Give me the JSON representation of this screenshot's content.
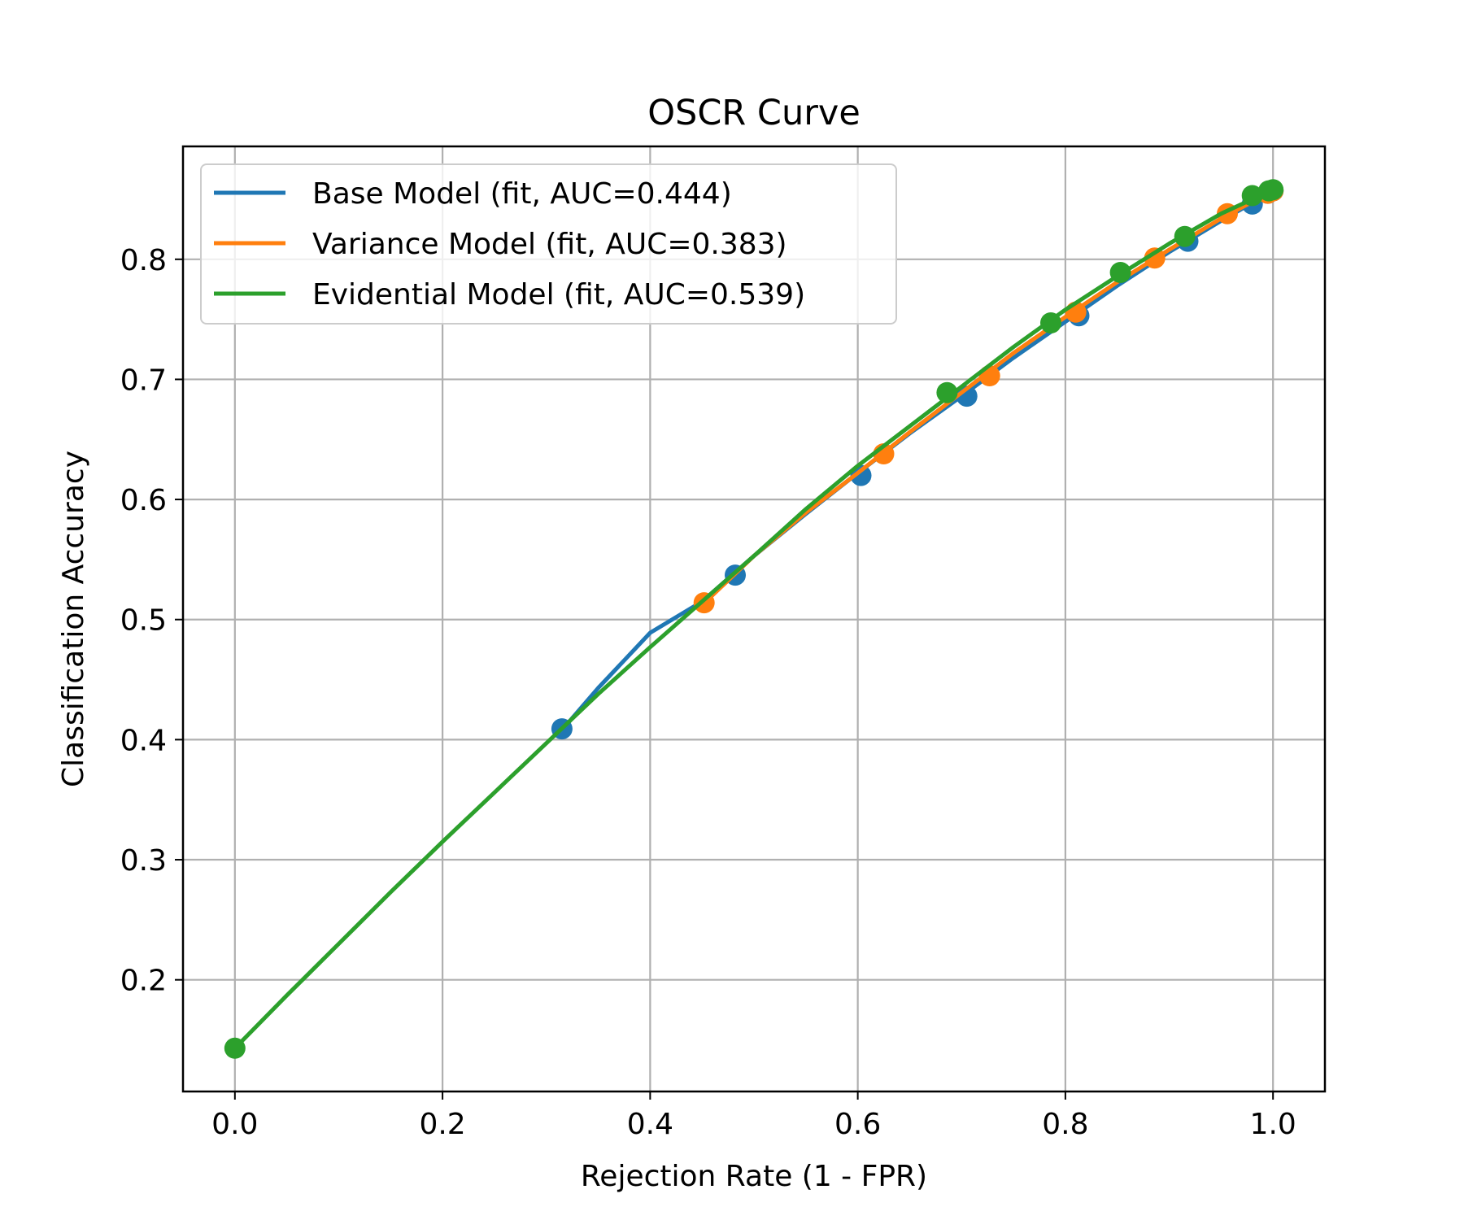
{
  "chart_data": {
    "type": "line",
    "title": "OSCR Curve",
    "xlabel": "Rejection Rate (1 - FPR)",
    "ylabel": "Classification Accuracy",
    "xlim": [
      -0.05,
      1.05
    ],
    "ylim": [
      0.107,
      0.894
    ],
    "xticks": [
      0.0,
      0.2,
      0.4,
      0.6,
      0.8,
      1.0
    ],
    "xtick_labels": [
      "0.0",
      "0.2",
      "0.4",
      "0.6",
      "0.8",
      "1.0"
    ],
    "yticks": [
      0.2,
      0.3,
      0.4,
      0.5,
      0.6,
      0.7,
      0.8
    ],
    "ytick_labels": [
      "0.2",
      "0.3",
      "0.4",
      "0.5",
      "0.6",
      "0.7",
      "0.8"
    ],
    "grid": true,
    "legend_position": "upper-left",
    "series": [
      {
        "name": "Base Model (fit, AUC=0.444)",
        "color": "#1f77b4",
        "fit_x": [
          0.315,
          0.35,
          0.4,
          0.45,
          0.5,
          0.55,
          0.6,
          0.65,
          0.7,
          0.75,
          0.8,
          0.85,
          0.9,
          0.95,
          1.0
        ],
        "fit_y": [
          0.408,
          0.443,
          0.489,
          0.515,
          0.553,
          0.588,
          0.622,
          0.655,
          0.686,
          0.718,
          0.748,
          0.778,
          0.806,
          0.832,
          0.857
        ],
        "points_x": [
          0.315,
          0.482,
          0.603,
          0.705,
          0.813,
          0.918,
          0.98,
          0.995,
          1.0
        ],
        "points_y": [
          0.409,
          0.537,
          0.62,
          0.686,
          0.753,
          0.815,
          0.846,
          0.855,
          0.857
        ]
      },
      {
        "name": "Variance Model (fit, AUC=0.383)",
        "color": "#ff7f0e",
        "fit_x": [
          0.45,
          0.5,
          0.55,
          0.6,
          0.65,
          0.7,
          0.75,
          0.8,
          0.85,
          0.9,
          0.95,
          1.0
        ],
        "fit_y": [
          0.512,
          0.553,
          0.589,
          0.622,
          0.656,
          0.689,
          0.722,
          0.752,
          0.781,
          0.808,
          0.834,
          0.857
        ],
        "points_x": [
          0.452,
          0.625,
          0.727,
          0.81,
          0.886,
          0.956,
          0.995,
          1.0
        ],
        "points_y": [
          0.514,
          0.638,
          0.703,
          0.756,
          0.801,
          0.838,
          0.855,
          0.857
        ]
      },
      {
        "name": "Evidential Model (fit, AUC=0.539)",
        "color": "#2ca02c",
        "fit_x": [
          0.0,
          0.05,
          0.1,
          0.15,
          0.2,
          0.25,
          0.3,
          0.35,
          0.4,
          0.45,
          0.5,
          0.55,
          0.6,
          0.65,
          0.7,
          0.75,
          0.8,
          0.85,
          0.9,
          0.95,
          1.0
        ],
        "fit_y": [
          0.143,
          0.187,
          0.23,
          0.273,
          0.315,
          0.356,
          0.397,
          0.438,
          0.477,
          0.515,
          0.553,
          0.592,
          0.628,
          0.661,
          0.694,
          0.727,
          0.758,
          0.786,
          0.813,
          0.838,
          0.858
        ],
        "points_x": [
          0.0,
          0.686,
          0.786,
          0.853,
          0.915,
          0.98,
          0.996,
          1.0
        ],
        "points_y": [
          0.143,
          0.689,
          0.747,
          0.789,
          0.819,
          0.853,
          0.857,
          0.858
        ]
      }
    ]
  }
}
